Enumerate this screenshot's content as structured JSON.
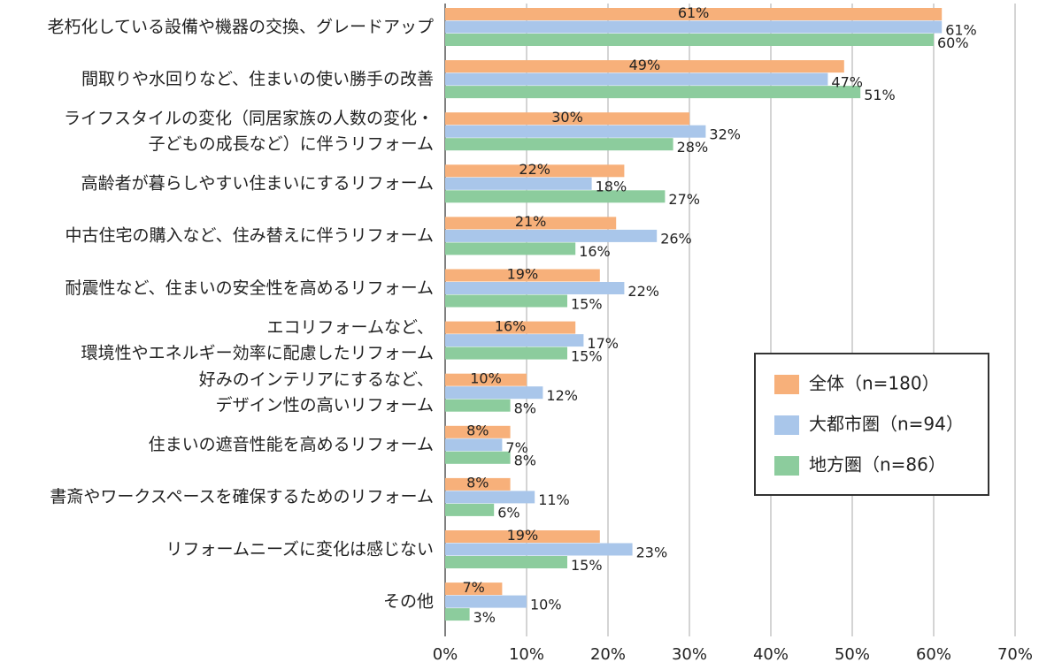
{
  "chart_data": {
    "type": "bar",
    "orientation": "horizontal",
    "categories": [
      [
        "老朽化している設備や機器の交換、グレードアップ"
      ],
      [
        "間取りや水回りなど、住まいの使い勝手の改善"
      ],
      [
        "ライフスタイルの変化（同居家族の人数の変化・",
        "子どもの成長など）に伴うリフォーム"
      ],
      [
        "高齢者が暮らしやすい住まいにするリフォーム"
      ],
      [
        "中古住宅の購入など、住み替えに伴うリフォーム"
      ],
      [
        "耐震性など、住まいの安全性を高めるリフォーム"
      ],
      [
        "エコリフォームなど、",
        "環境性やエネルギー効率に配慮したリフォーム"
      ],
      [
        "好みのインテリアにするなど、",
        "デザイン性の高いリフォーム"
      ],
      [
        "住まいの遮音性能を高めるリフォーム"
      ],
      [
        "書斎やワークスペースを確保するためのリフォーム"
      ],
      [
        "リフォームニーズに変化は感じない"
      ],
      [
        "その他"
      ]
    ],
    "series": [
      {
        "name": "全体（n=180）",
        "color": "#f7b07a",
        "values": [
          61,
          49,
          30,
          22,
          21,
          19,
          16,
          10,
          8,
          8,
          19,
          7
        ],
        "labels": [
          "61%",
          "49%",
          "30%",
          "22%",
          "21%",
          "19%",
          "16%",
          "10%",
          "8%",
          "8%",
          "19%",
          "7%"
        ]
      },
      {
        "name": "大都市圏（n=94）",
        "color": "#a9c6ea",
        "values": [
          61,
          47,
          32,
          18,
          26,
          22,
          17,
          12,
          7,
          11,
          23,
          10
        ],
        "labels": [
          "61%",
          "47%",
          "32%",
          "18%",
          "26%",
          "22%",
          "17%",
          "12%",
          "7%",
          "11%",
          "23%",
          "10%"
        ]
      },
      {
        "name": "地方圏（n=86）",
        "color": "#8ccc9d",
        "values": [
          60,
          51,
          28,
          27,
          16,
          15,
          15,
          8,
          8,
          6,
          15,
          3
        ],
        "labels": [
          "60%",
          "51%",
          "28%",
          "27%",
          "16%",
          "15%",
          "15%",
          "8%",
          "8%",
          "6%",
          "15%",
          "3%"
        ]
      }
    ],
    "xlim": [
      0,
      70
    ],
    "xticks": [
      "0%",
      "10%",
      "20%",
      "30%",
      "40%",
      "50%",
      "60%",
      "70%"
    ],
    "grid": true,
    "legend_position": "right"
  }
}
